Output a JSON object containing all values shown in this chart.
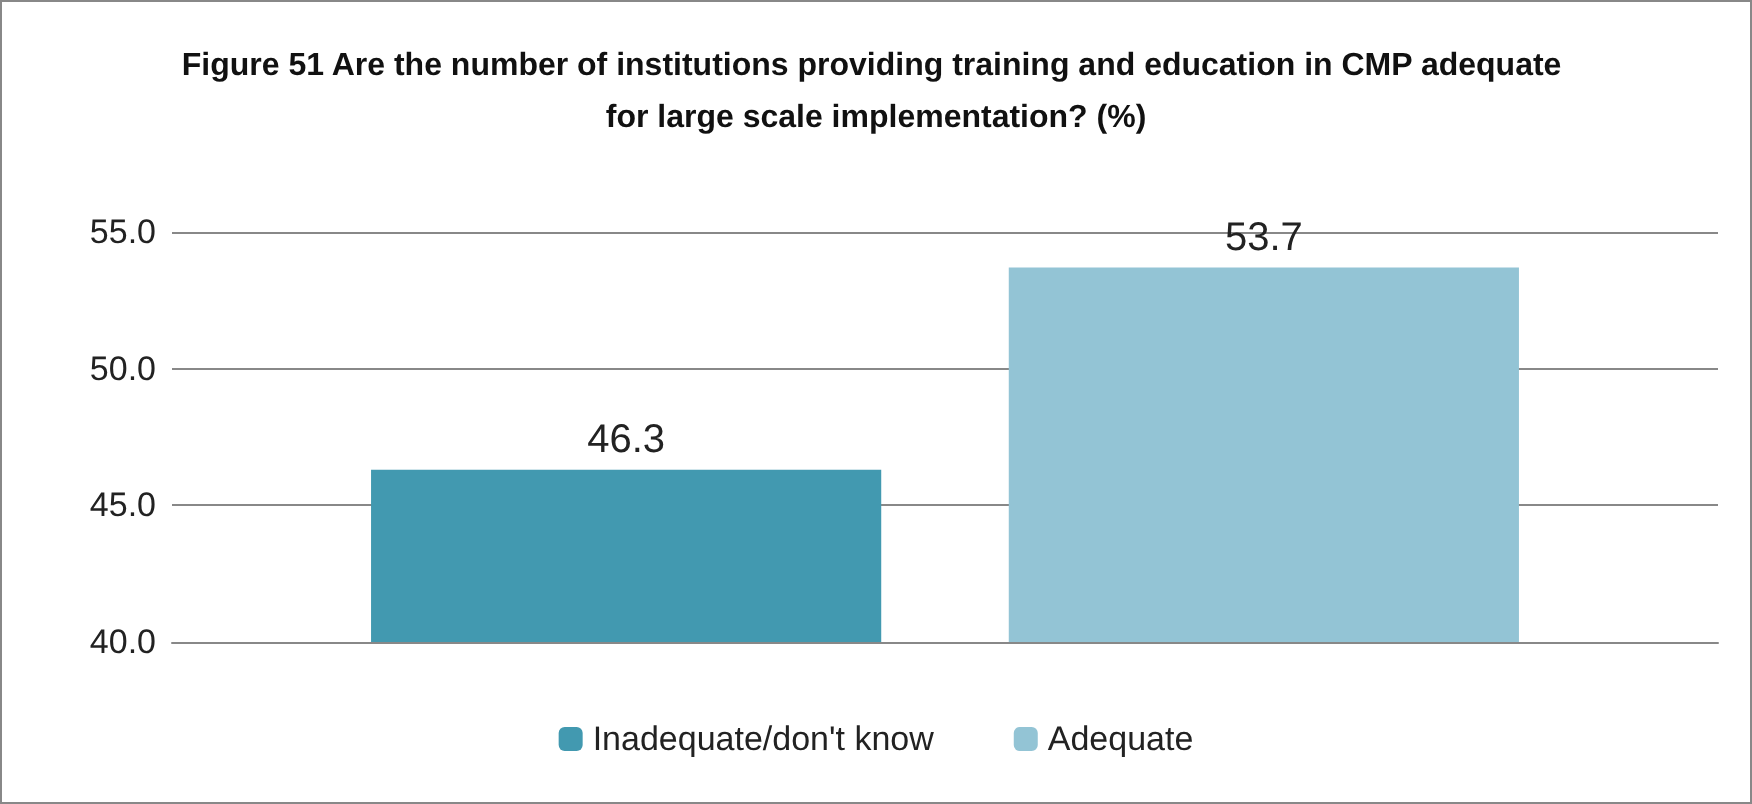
{
  "chart_data": {
    "type": "bar",
    "title": "Figure 51 Are the number of institutions providing training and education in CMP adequate for large scale implementation? (%)",
    "categories": [
      null
    ],
    "series": [
      {
        "name": "Inadequate/don't know",
        "color": "#4299b0",
        "values": [
          46.3
        ]
      },
      {
        "name": "Adequate",
        "color": "#93c4d5",
        "values": [
          53.7
        ]
      }
    ],
    "ylim": [
      40,
      55
    ],
    "yticks": [
      {
        "value": 40,
        "label": "40.0"
      },
      {
        "value": 45,
        "label": "45.0"
      },
      {
        "value": 50,
        "label": "50.0"
      },
      {
        "value": 55,
        "label": "55.0"
      }
    ],
    "grid": "y",
    "legend": "bottom",
    "data_labels": true
  }
}
